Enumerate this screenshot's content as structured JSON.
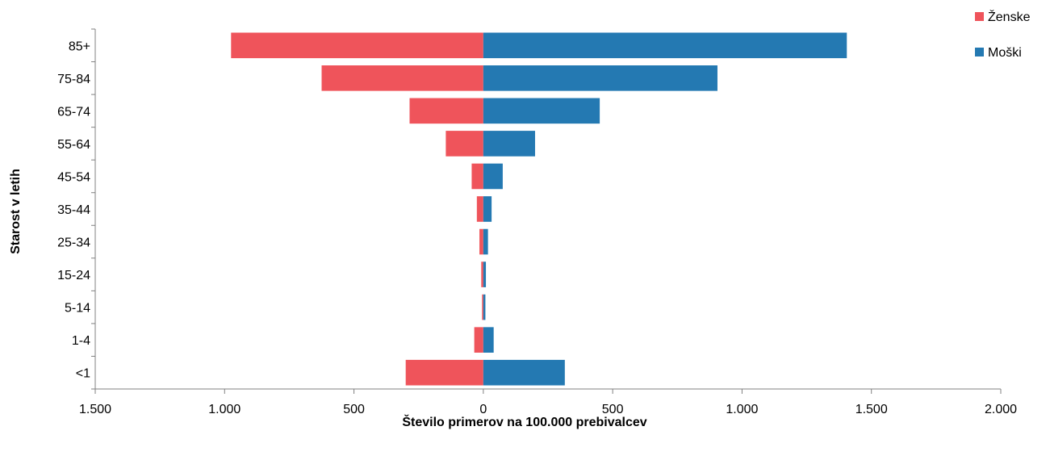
{
  "chart_data": {
    "type": "bar",
    "orientation": "horizontal-butterfly",
    "categories": [
      "85+",
      "75-84",
      "65-74",
      "55-64",
      "45-54",
      "35-44",
      "25-34",
      "15-24",
      "5-14",
      "1-4",
      "<1"
    ],
    "series": [
      {
        "name": "Ženske",
        "color": "#EF545B",
        "direction": "left",
        "values": [
          975,
          625,
          285,
          145,
          45,
          25,
          15,
          8,
          5,
          35,
          300
        ]
      },
      {
        "name": "Moški",
        "color": "#2479B2",
        "direction": "right",
        "values": [
          1405,
          905,
          450,
          200,
          75,
          32,
          18,
          10,
          8,
          40,
          315
        ]
      }
    ],
    "xlabel": "Število primerov na 100.000 prebivalcev",
    "ylabel": "Starost v letih",
    "xlim": [
      -1500,
      2000
    ],
    "xticks": [
      -1500,
      -1000,
      -500,
      0,
      500,
      1000,
      1500,
      2000
    ],
    "xtick_labels": [
      "1.500",
      "1.000",
      "500",
      "0",
      "500",
      "1.000",
      "1.500",
      "2.000"
    ],
    "legend_position": "top-right",
    "grid": false
  }
}
